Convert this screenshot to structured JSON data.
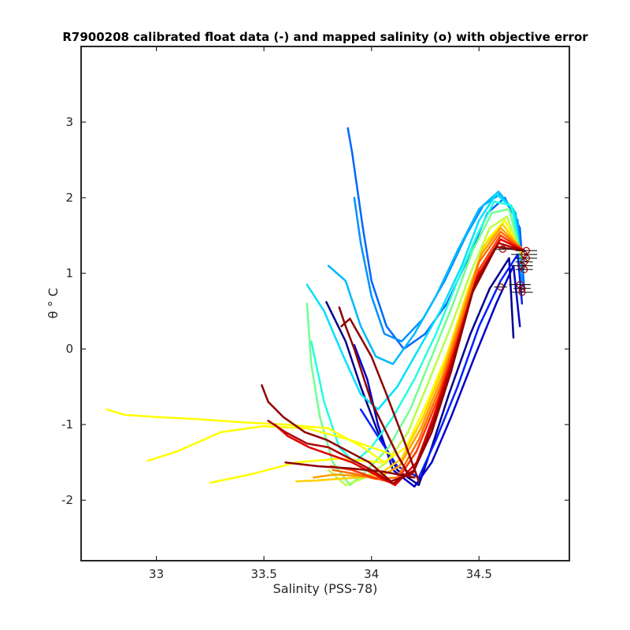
{
  "chart_data": {
    "type": "line",
    "title": "R7900208 calibrated float data (-) and mapped salinity (o) with objective error",
    "xlabel": "Salinity (PSS-78)",
    "ylabel": "θ ° C",
    "xlim": [
      32.65,
      34.92
    ],
    "ylim": [
      -2.8,
      4.0
    ],
    "xticks": [
      33,
      33.5,
      34,
      34.5
    ],
    "xtick_labels": [
      "33",
      "33.5",
      "34",
      "34.5"
    ],
    "yticks": [
      -2,
      -1,
      0,
      1,
      2,
      3
    ],
    "ytick_labels": [
      "-2",
      "-1",
      "0",
      "1",
      "2",
      "3"
    ],
    "grid": false,
    "colormap": "jet",
    "series": [
      {
        "color": "#00008f",
        "x": [
          34.66,
          34.64,
          34.55,
          34.46,
          34.36,
          34.28,
          34.22,
          34.12,
          34.03,
          33.95,
          33.88,
          33.79
        ],
        "y": [
          0.15,
          1.2,
          0.8,
          0.2,
          -0.6,
          -1.3,
          -1.8,
          -1.6,
          -1.1,
          -0.5,
          0.1,
          0.62
        ]
      },
      {
        "color": "#0000c8",
        "x": [
          34.69,
          34.66,
          34.58,
          34.48,
          34.37,
          34.28,
          34.2,
          34.1,
          34.03,
          33.98,
          33.92
        ],
        "y": [
          0.3,
          1.1,
          0.6,
          -0.1,
          -0.9,
          -1.5,
          -1.82,
          -1.6,
          -1.0,
          -0.4,
          0.05
        ]
      },
      {
        "color": "#0020ff",
        "x": [
          34.7,
          34.68,
          34.6,
          34.5,
          34.4,
          34.3,
          34.22,
          34.12,
          34.04,
          33.95
        ],
        "y": [
          0.6,
          1.25,
          0.9,
          0.3,
          -0.5,
          -1.2,
          -1.7,
          -1.55,
          -1.2,
          -0.8
        ]
      },
      {
        "color": "#0066ff",
        "x": [
          34.71,
          34.69,
          34.62,
          34.54,
          34.45,
          34.35,
          34.25,
          34.15,
          34.07,
          34.0,
          33.96,
          33.93,
          33.91,
          33.89
        ],
        "y": [
          0.8,
          1.6,
          2.0,
          1.8,
          1.2,
          0.6,
          0.2,
          0.0,
          0.3,
          0.9,
          1.6,
          2.2,
          2.6,
          2.92
        ]
      },
      {
        "color": "#0090ff",
        "x": [
          34.7,
          34.68,
          34.6,
          34.52,
          34.44,
          34.34,
          34.24,
          34.14,
          34.06,
          34.0,
          33.95,
          33.92
        ],
        "y": [
          0.9,
          1.7,
          2.05,
          1.9,
          1.5,
          0.9,
          0.4,
          0.1,
          0.2,
          0.7,
          1.4,
          2.0
        ]
      },
      {
        "color": "#00b8ff",
        "x": [
          34.7,
          34.67,
          34.59,
          34.5,
          34.4,
          34.3,
          34.2,
          34.1,
          34.02,
          33.95,
          33.88,
          33.8
        ],
        "y": [
          1.0,
          1.8,
          2.08,
          1.85,
          1.3,
          0.7,
          0.2,
          -0.2,
          -0.1,
          0.3,
          0.9,
          1.1
        ]
      },
      {
        "color": "#00e0ff",
        "x": [
          34.7,
          34.66,
          34.58,
          34.5,
          34.42,
          34.32,
          34.22,
          34.12,
          34.03,
          33.95,
          33.87,
          33.78,
          33.7
        ],
        "y": [
          1.1,
          1.85,
          2.05,
          1.7,
          1.1,
          0.5,
          0.0,
          -0.5,
          -0.8,
          -0.6,
          -0.1,
          0.5,
          0.85
        ]
      },
      {
        "color": "#20ffe0",
        "x": [
          34.7,
          34.65,
          34.57,
          34.49,
          34.4,
          34.3,
          34.2,
          34.1,
          34.0,
          33.92,
          33.85,
          33.78,
          33.72
        ],
        "y": [
          1.15,
          1.9,
          1.95,
          1.5,
          0.9,
          0.2,
          -0.4,
          -0.9,
          -1.3,
          -1.5,
          -1.3,
          -0.7,
          0.1
        ]
      },
      {
        "color": "#70ff90",
        "x": [
          34.7,
          34.64,
          34.56,
          34.47,
          34.38,
          34.28,
          34.18,
          34.08,
          33.98,
          33.9,
          33.82,
          33.76,
          33.72,
          33.7
        ],
        "y": [
          1.2,
          1.85,
          1.8,
          1.3,
          0.6,
          -0.1,
          -0.8,
          -1.3,
          -1.6,
          -1.8,
          -1.5,
          -0.9,
          -0.2,
          0.6
        ]
      },
      {
        "color": "#b8ff48",
        "x": [
          34.7,
          34.63,
          34.55,
          34.46,
          34.37,
          34.27,
          34.17,
          34.07,
          33.97,
          33.88,
          33.8
        ],
        "y": [
          1.2,
          1.75,
          1.6,
          1.0,
          0.3,
          -0.4,
          -1.1,
          -1.5,
          -1.7,
          -1.8,
          -1.6
        ]
      },
      {
        "color": "#ffff00",
        "x": [
          34.7,
          34.62,
          34.54,
          34.45,
          34.36,
          34.26,
          34.16,
          34.06,
          33.96,
          33.8,
          33.6,
          33.4,
          33.2,
          33.0,
          32.85,
          32.77
        ],
        "y": [
          1.25,
          1.7,
          1.45,
          0.8,
          0.0,
          -0.7,
          -1.3,
          -1.5,
          -1.3,
          -1.05,
          -1.0,
          -0.97,
          -0.93,
          -0.9,
          -0.87,
          -0.8
        ]
      },
      {
        "color": "#ffff00",
        "x": [
          34.1,
          33.9,
          33.7,
          33.5,
          33.3,
          33.1,
          32.96
        ],
        "y": [
          -1.4,
          -1.2,
          -1.05,
          -1.02,
          -1.1,
          -1.35,
          -1.48
        ]
      },
      {
        "color": "#ffff00",
        "x": [
          34.05,
          33.85,
          33.65,
          33.45,
          33.25
        ],
        "y": [
          -1.5,
          -1.45,
          -1.5,
          -1.65,
          -1.77
        ]
      },
      {
        "color": "#ffd000",
        "x": [
          34.7,
          34.61,
          34.52,
          34.43,
          34.34,
          34.24,
          34.14,
          34.04,
          33.94,
          33.84,
          33.74,
          33.65
        ],
        "y": [
          1.3,
          1.65,
          1.35,
          0.6,
          -0.2,
          -0.9,
          -1.45,
          -1.65,
          -1.7,
          -1.72,
          -1.74,
          -1.75
        ]
      },
      {
        "color": "#ffa000",
        "x": [
          34.71,
          34.6,
          34.51,
          34.42,
          34.33,
          34.23,
          34.13,
          34.03,
          33.93,
          33.83,
          33.73
        ],
        "y": [
          1.3,
          1.6,
          1.25,
          0.45,
          -0.35,
          -1.05,
          -1.55,
          -1.7,
          -1.68,
          -1.66,
          -1.7
        ]
      },
      {
        "color": "#ff7000",
        "x": [
          34.71,
          34.6,
          34.5,
          34.41,
          34.32,
          34.22,
          34.12,
          34.02,
          33.92,
          33.82
        ],
        "y": [
          1.3,
          1.55,
          1.15,
          0.3,
          -0.5,
          -1.2,
          -1.7,
          -1.72,
          -1.65,
          -1.6
        ]
      },
      {
        "color": "#ff3800",
        "x": [
          34.71,
          34.6,
          34.5,
          34.4,
          34.31,
          34.21,
          34.11,
          34.01,
          33.91,
          33.81
        ],
        "y": [
          1.3,
          1.5,
          1.05,
          0.15,
          -0.65,
          -1.35,
          -1.78,
          -1.7,
          -1.6,
          -1.55
        ]
      },
      {
        "color": "#e00000",
        "x": [
          34.71,
          34.6,
          34.49,
          34.39,
          34.3,
          34.21,
          34.11,
          34.01,
          33.91,
          33.81,
          33.71,
          33.61,
          33.55
        ],
        "y": [
          1.3,
          1.45,
          0.95,
          0.0,
          -0.8,
          -1.5,
          -1.8,
          -1.65,
          -1.5,
          -1.4,
          -1.3,
          -1.15,
          -1.0
        ]
      },
      {
        "color": "#b00000",
        "x": [
          34.71,
          34.59,
          34.48,
          34.38,
          34.29,
          34.2,
          34.1,
          34.0,
          33.9,
          33.8,
          33.7,
          33.6,
          33.52
        ],
        "y": [
          1.3,
          1.4,
          0.85,
          -0.15,
          -0.95,
          -1.6,
          -1.78,
          -1.6,
          -1.45,
          -1.3,
          -1.25,
          -1.1,
          -0.95
        ]
      },
      {
        "color": "#8f0000",
        "x": [
          34.71,
          34.58,
          34.47,
          34.37,
          34.28,
          34.19,
          34.09,
          33.99,
          33.89,
          33.79,
          33.69,
          33.59,
          33.52,
          33.49
        ],
        "y": [
          1.3,
          1.35,
          0.75,
          -0.3,
          -1.1,
          -1.65,
          -1.75,
          -1.5,
          -1.35,
          -1.2,
          -1.1,
          -0.9,
          -0.7,
          -0.48
        ]
      },
      {
        "color": "#8f0000",
        "x": [
          34.18,
          34.12,
          34.06,
          34.0,
          33.96,
          33.92,
          33.88,
          33.85
        ],
        "y": [
          -1.7,
          -1.4,
          -1.05,
          -0.7,
          -0.35,
          0.0,
          0.3,
          0.55
        ]
      },
      {
        "color": "#8f0000",
        "x": [
          34.22,
          34.15,
          34.07,
          34.0,
          33.95,
          33.9,
          33.86
        ],
        "y": [
          -1.75,
          -1.2,
          -0.6,
          -0.1,
          0.15,
          0.4,
          0.3
        ]
      },
      {
        "color": "#8f0000",
        "x": [
          34.2,
          34.05,
          33.9,
          33.75,
          33.6
        ],
        "y": [
          -1.7,
          -1.62,
          -1.58,
          -1.55,
          -1.5
        ]
      }
    ],
    "mapped_salinity_markers": [
      {
        "x": 34.72,
        "y": 1.3,
        "xerr": 0.05
      },
      {
        "x": 34.71,
        "y": 1.25,
        "xerr": 0.06
      },
      {
        "x": 34.72,
        "y": 1.2,
        "xerr": 0.05
      },
      {
        "x": 34.71,
        "y": 1.15,
        "xerr": 0.04
      },
      {
        "x": 34.7,
        "y": 1.1,
        "xerr": 0.05
      },
      {
        "x": 34.71,
        "y": 1.05,
        "xerr": 0.04
      },
      {
        "x": 34.69,
        "y": 0.85,
        "xerr": 0.05
      },
      {
        "x": 34.7,
        "y": 0.8,
        "xerr": 0.04
      },
      {
        "x": 34.7,
        "y": 0.75,
        "xerr": 0.05
      },
      {
        "x": 34.61,
        "y": 1.32,
        "xerr": 0.04
      },
      {
        "x": 34.6,
        "y": 0.82,
        "xerr": 0.03
      }
    ]
  }
}
